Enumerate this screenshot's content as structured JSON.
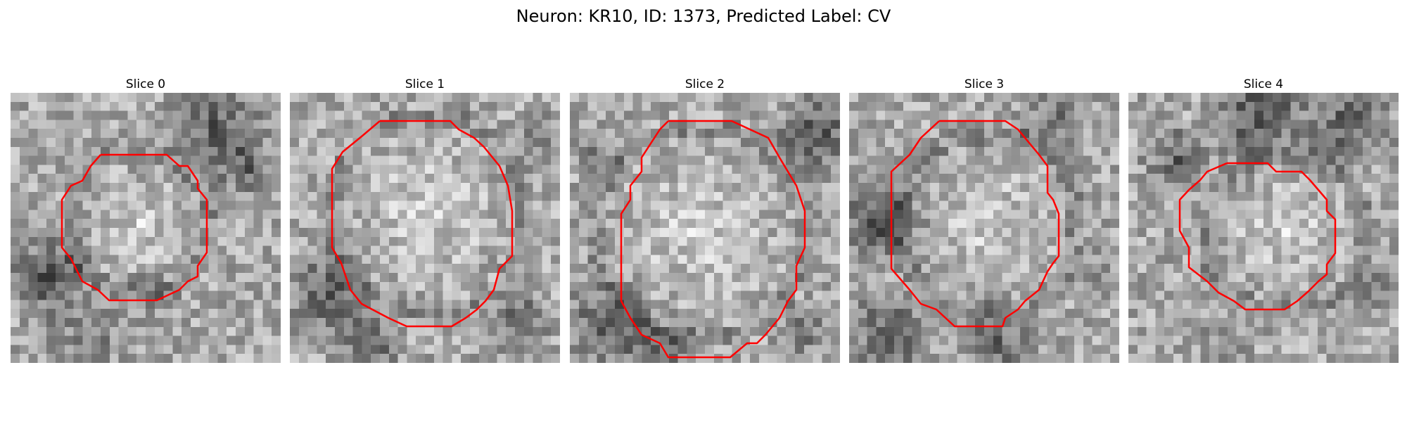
{
  "figure": {
    "title": "Neuron: KR10, ID: 1373, Predicted Label: CV",
    "contour_color": "#ff0000",
    "panels": [
      {
        "title": "Slice 0",
        "dark_region": "lower-left and upper-right"
      },
      {
        "title": "Slice 1",
        "dark_region": "lower-left"
      },
      {
        "title": "Slice 2",
        "dark_region": "upper-right and lower-left"
      },
      {
        "title": "Slice 3",
        "dark_region": "left and bottom"
      },
      {
        "title": "Slice 4",
        "dark_region": "top"
      }
    ]
  }
}
